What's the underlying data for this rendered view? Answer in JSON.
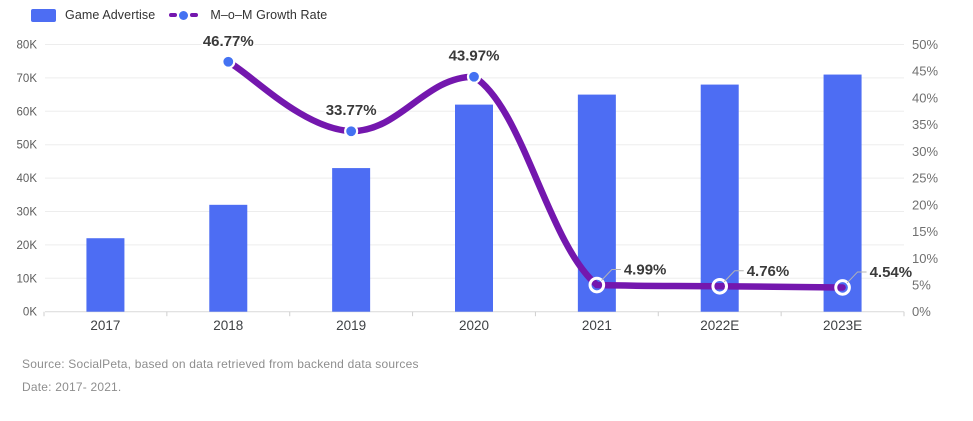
{
  "legend": {
    "bar_label": "Game Advertise",
    "line_label": "M–o–M Growth Rate"
  },
  "footer": {
    "source": "Source: SocialPeta, based on data retrieved from backend data sources",
    "date": "Date: 2017- 2021."
  },
  "chart_data": {
    "type": "combo-bar-line",
    "title": "",
    "categories": [
      "2017",
      "2018",
      "2019",
      "2020",
      "2021",
      "2022E",
      "2023E"
    ],
    "series": [
      {
        "name": "Game Advertise",
        "type": "bar",
        "axis": "left",
        "color": "#4d6df3",
        "values": [
          22000,
          32000,
          43000,
          62000,
          65000,
          68000,
          71000
        ]
      },
      {
        "name": "M–o–M Growth Rate",
        "type": "line",
        "axis": "right",
        "color": "#7417ae",
        "marker_fill": "#4472f2",
        "values": [
          null,
          46.77,
          33.77,
          43.97,
          4.99,
          4.76,
          4.54
        ],
        "labels": [
          null,
          "46.77%",
          "33.77%",
          "43.97%",
          "4.99%",
          "4.76%",
          "4.54%"
        ],
        "marker_style_by_point": [
          "none",
          "filled",
          "filled",
          "filled",
          "hollow",
          "hollow",
          "hollow"
        ]
      }
    ],
    "left_axis": {
      "min": 0,
      "max": 80000,
      "ticks": [
        "0K",
        "10K",
        "20K",
        "30K",
        "40K",
        "50K",
        "60K",
        "70K",
        "80K"
      ]
    },
    "right_axis": {
      "min": 0,
      "max": 50,
      "ticks": [
        "0%",
        "5%",
        "10%",
        "15%",
        "20%",
        "25%",
        "30%",
        "35%",
        "40%",
        "45%",
        "50%"
      ]
    },
    "grid": true,
    "legend_position": "top-left",
    "colors": {
      "gridline": "#ededed",
      "axis_line": "#d9d9d9",
      "tick_mark": "#cfcfcf",
      "left_tick_text": "#5d5d5d",
      "right_tick_text": "#707070",
      "category_text": "#3f4245",
      "data_label_text": "#3a3a3a",
      "connector": "#b4b4b4"
    }
  }
}
